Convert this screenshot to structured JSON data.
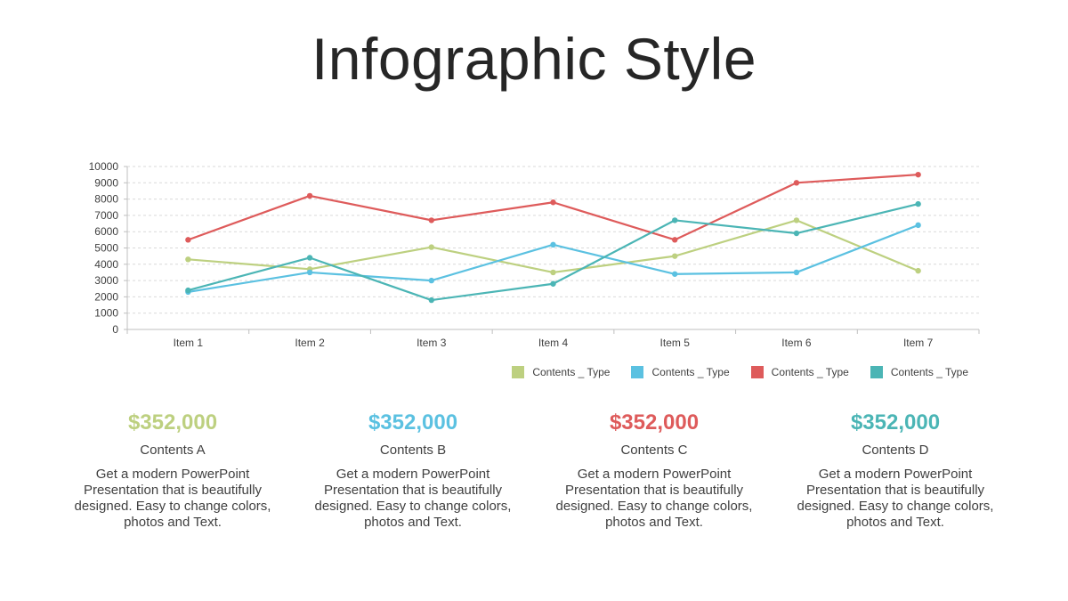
{
  "title": "Infographic Style",
  "colors": {
    "green": "#bdd080",
    "blue": "#5bc1e1",
    "red": "#de5b5b",
    "teal": "#4bb5b5"
  },
  "chart_data": {
    "type": "line",
    "categories": [
      "Item 1",
      "Item 2",
      "Item 3",
      "Item 4",
      "Item 5",
      "Item 6",
      "Item 7"
    ],
    "ylim": [
      0,
      10000
    ],
    "yticks": [
      0,
      1000,
      2000,
      3000,
      4000,
      5000,
      6000,
      7000,
      8000,
      9000,
      10000
    ],
    "grid": "horizontal dashed",
    "legend_position": "bottom-right",
    "series": [
      {
        "name": "Contents _ Type",
        "color": "#bdd080",
        "values": [
          4300,
          3700,
          5050,
          3500,
          4500,
          6700,
          3600
        ]
      },
      {
        "name": "Contents _ Type",
        "color": "#5bc1e1",
        "values": [
          2300,
          3500,
          3000,
          5200,
          3400,
          3500,
          6400
        ]
      },
      {
        "name": "Contents _ Type",
        "color": "#de5b5b",
        "values": [
          5500,
          8200,
          6700,
          7800,
          5500,
          9000,
          9500
        ]
      },
      {
        "name": "Contents _ Type",
        "color": "#4bb5b5",
        "values": [
          2400,
          4400,
          1800,
          2800,
          6700,
          5900,
          7700
        ]
      }
    ]
  },
  "cards": [
    {
      "value": "$352,000",
      "name": "Contents A",
      "desc": "Get a modern PowerPoint Presentation that is beautifully designed. Easy to change colors, photos and Text.",
      "color": "#bdd080"
    },
    {
      "value": "$352,000",
      "name": "Contents B",
      "desc": "Get a modern PowerPoint Presentation that is beautifully designed. Easy to change colors, photos and Text.",
      "color": "#5bc1e1"
    },
    {
      "value": "$352,000",
      "name": "Contents C",
      "desc": "Get a modern PowerPoint Presentation that is beautifully designed. Easy to change colors, photos and Text.",
      "color": "#de5b5b"
    },
    {
      "value": "$352,000",
      "name": "Contents D",
      "desc": "Get a modern PowerPoint Presentation that is beautifully designed. Easy to change colors, photos and Text.",
      "color": "#4bb5b5"
    }
  ]
}
